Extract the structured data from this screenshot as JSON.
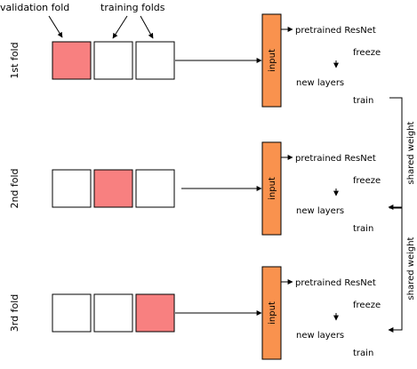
{
  "header": {
    "validation_label": "validation fold",
    "training_label": "training folds"
  },
  "colors": {
    "validation_fill": "#f88080",
    "training_fill": "#ffffff",
    "input_fill": "#f9924e",
    "stroke": "#000000"
  },
  "folds": [
    {
      "label": "1st fold",
      "validation_index": 0,
      "input_label": "input",
      "pretrained_label": "pretrained ResNet",
      "freeze_label": "freeze",
      "new_layers_label": "new layers",
      "train_label": "train"
    },
    {
      "label": "2nd fold",
      "validation_index": 1,
      "input_label": "input",
      "pretrained_label": "pretrained ResNet",
      "freeze_label": "freeze",
      "new_layers_label": "new layers",
      "train_label": "train"
    },
    {
      "label": "3rd fold",
      "validation_index": 2,
      "input_label": "input",
      "pretrained_label": "pretrained ResNet",
      "freeze_label": "freeze",
      "new_layers_label": "new layers",
      "train_label": "train"
    }
  ],
  "shared_weights": [
    {
      "label": "shared weight"
    },
    {
      "label": "shared weight"
    }
  ]
}
